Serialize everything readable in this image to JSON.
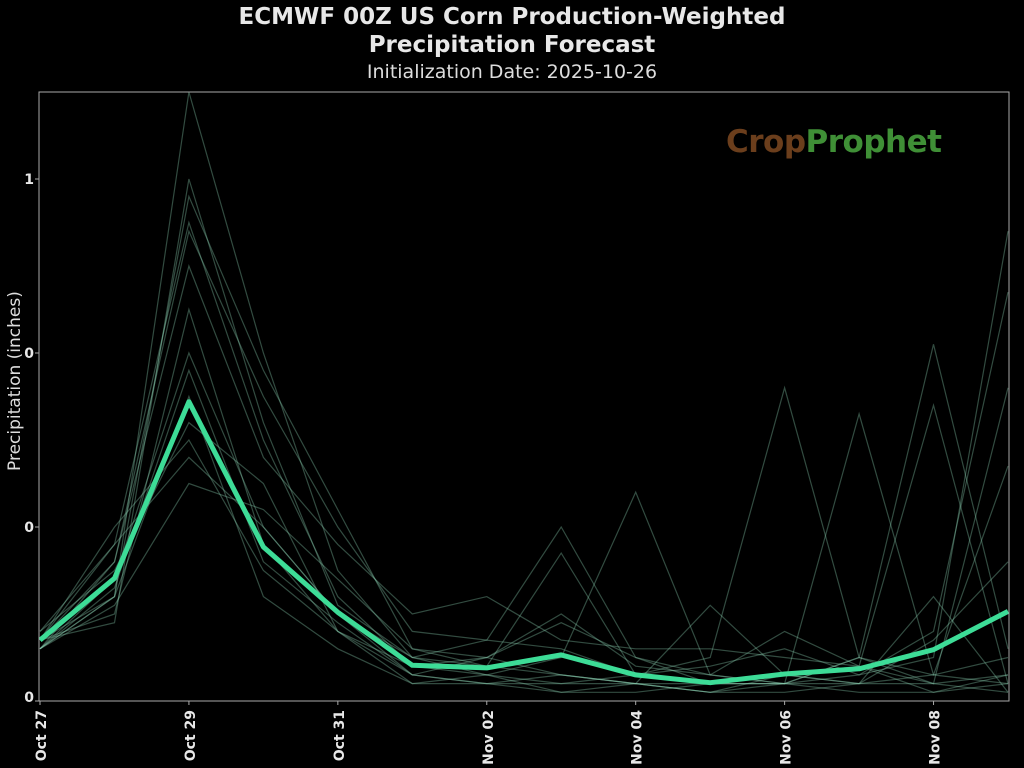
{
  "chart_data": {
    "type": "line",
    "title": "ECMWF 00Z US Corn Production-Weighted",
    "title_line2": "Precipitation Forecast",
    "subtitle": "Initialization Date: 2025-10-26",
    "xlabel": "",
    "ylabel": "Precipitation (inches)",
    "x": [
      "2025-10-27",
      "2025-10-28",
      "2025-10-29",
      "2025-10-30",
      "2025-10-31",
      "2025-11-01",
      "2025-11-02",
      "2025-11-03",
      "2025-11-04",
      "2025-11-05",
      "2025-11-06",
      "2025-11-07",
      "2025-11-08",
      "2025-11-09"
    ],
    "x_tick_labels": [
      "Oct 27",
      "Oct 29",
      "Oct 31",
      "Nov 02",
      "Nov 04",
      "Nov 06",
      "Nov 08"
    ],
    "y_ticks": [
      0,
      0.2,
      0.4,
      0.6
    ],
    "y_tick_labels": [
      "0",
      "0",
      "0",
      "1"
    ],
    "ylim": [
      0,
      0.7
    ],
    "grid": false,
    "colors": {
      "mean": "#3ddc97",
      "members": "#8fd6b8",
      "background": "#000000",
      "axes": "#aaaaaa"
    },
    "mean": [
      0.07,
      0.141,
      0.344,
      0.177,
      0.102,
      0.041,
      0.038,
      0.053,
      0.03,
      0.021,
      0.031,
      0.037,
      0.059,
      0.103
    ],
    "members": [
      [
        0.07,
        0.12,
        0.7,
        0.4,
        0.15,
        0.05,
        0.03,
        0.02,
        0.02,
        0.01,
        0.01,
        0.02,
        0.03,
        0.05
      ],
      [
        0.06,
        0.16,
        0.54,
        0.35,
        0.2,
        0.08,
        0.07,
        0.2,
        0.05,
        0.02,
        0.03,
        0.02,
        0.02,
        0.03
      ],
      [
        0.08,
        0.18,
        0.55,
        0.3,
        0.12,
        0.04,
        0.03,
        0.05,
        0.24,
        0.03,
        0.02,
        0.01,
        0.01,
        0.02
      ],
      [
        0.07,
        0.1,
        0.45,
        0.18,
        0.08,
        0.03,
        0.02,
        0.02,
        0.03,
        0.05,
        0.36,
        0.05,
        0.02,
        0.01
      ],
      [
        0.06,
        0.14,
        0.4,
        0.2,
        0.1,
        0.03,
        0.05,
        0.03,
        0.02,
        0.02,
        0.02,
        0.33,
        0.03,
        0.02
      ],
      [
        0.07,
        0.2,
        0.3,
        0.15,
        0.08,
        0.02,
        0.03,
        0.01,
        0.02,
        0.01,
        0.02,
        0.05,
        0.41,
        0.06
      ],
      [
        0.06,
        0.12,
        0.35,
        0.12,
        0.06,
        0.02,
        0.02,
        0.01,
        0.01,
        0.02,
        0.02,
        0.03,
        0.05,
        0.54
      ],
      [
        0.08,
        0.15,
        0.32,
        0.25,
        0.08,
        0.04,
        0.05,
        0.09,
        0.05,
        0.03,
        0.08,
        0.04,
        0.34,
        0.02
      ],
      [
        0.07,
        0.18,
        0.28,
        0.2,
        0.1,
        0.05,
        0.07,
        0.06,
        0.03,
        0.04,
        0.06,
        0.03,
        0.08,
        0.47
      ],
      [
        0.06,
        0.11,
        0.25,
        0.22,
        0.14,
        0.06,
        0.04,
        0.17,
        0.03,
        0.02,
        0.02,
        0.02,
        0.07,
        0.16
      ],
      [
        0.07,
        0.16,
        0.5,
        0.28,
        0.18,
        0.1,
        0.12,
        0.07,
        0.06,
        0.06,
        0.05,
        0.04,
        0.02,
        0.36
      ],
      [
        0.06,
        0.13,
        0.38,
        0.16,
        0.09,
        0.03,
        0.02,
        0.03,
        0.02,
        0.11,
        0.03,
        0.02,
        0.12,
        0.01
      ],
      [
        0.07,
        0.09,
        0.6,
        0.32,
        0.11,
        0.05,
        0.04,
        0.03,
        0.02,
        0.01,
        0.03,
        0.04,
        0.01,
        0.03
      ],
      [
        0.06,
        0.12,
        0.58,
        0.38,
        0.22,
        0.06,
        0.05,
        0.1,
        0.04,
        0.03,
        0.02,
        0.05,
        0.03,
        0.27
      ]
    ]
  },
  "logo": {
    "text_a": "Crop",
    "text_b": "Prophet"
  }
}
